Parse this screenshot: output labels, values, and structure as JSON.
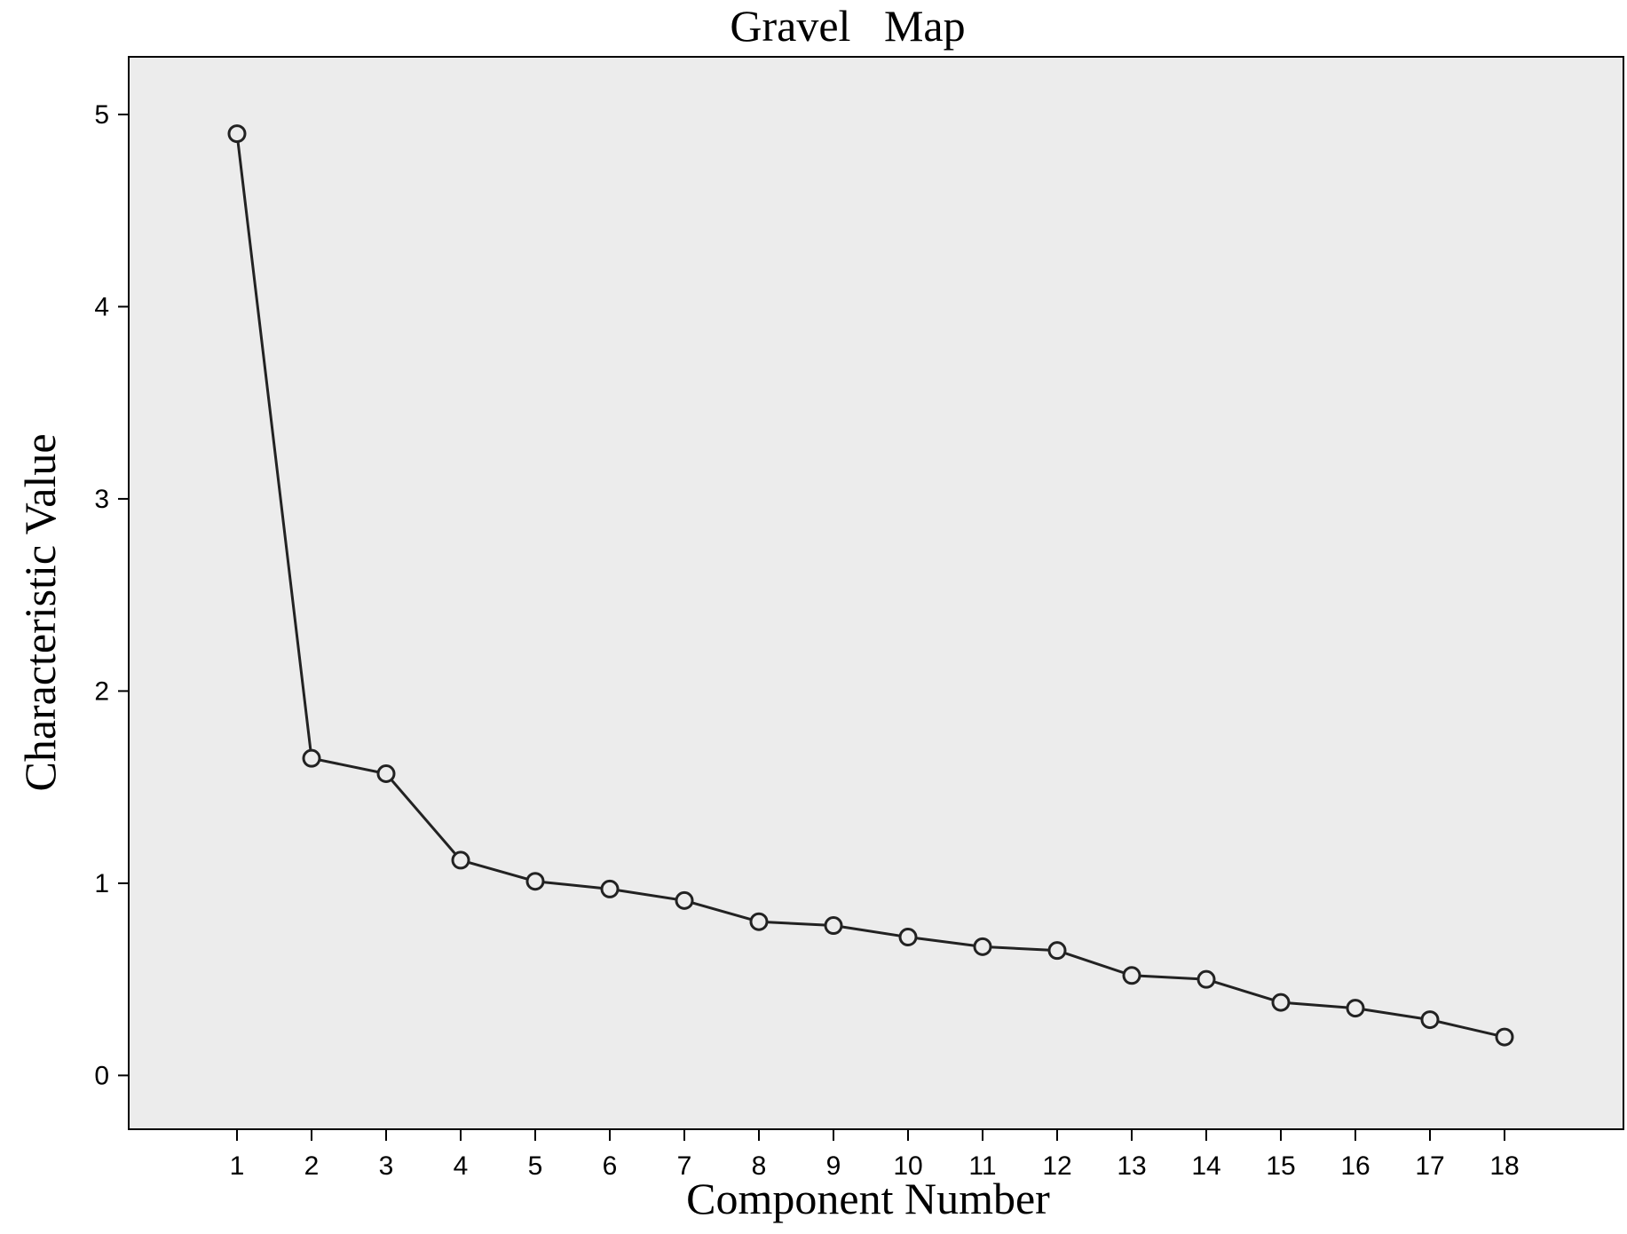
{
  "chart_data": {
    "type": "line",
    "title": "Gravel   Map",
    "xlabel": "Component Number",
    "ylabel": "Characteristic Value",
    "x": [
      1,
      2,
      3,
      4,
      5,
      6,
      7,
      8,
      9,
      10,
      11,
      12,
      13,
      14,
      15,
      16,
      17,
      18
    ],
    "xticks": [
      "1",
      "2",
      "3",
      "4",
      "5",
      "6",
      "7",
      "8",
      "9",
      "10",
      "11",
      "12",
      "13",
      "14",
      "15",
      "16",
      "17",
      "18"
    ],
    "yticks": [
      "0",
      "1",
      "2",
      "3",
      "4",
      "5"
    ],
    "ylim": [
      -0.28,
      5.3
    ],
    "series": [
      {
        "values": [
          4.9,
          1.65,
          1.57,
          1.12,
          1.01,
          0.97,
          0.91,
          0.8,
          0.78,
          0.72,
          0.67,
          0.65,
          0.52,
          0.5,
          0.38,
          0.35,
          0.29,
          0.2
        ]
      }
    ],
    "marker": "hollow-circle",
    "grid": false,
    "legend": "none",
    "colors": {
      "plot_background": "#ececec",
      "line": "#222222",
      "axis": "#000000"
    }
  }
}
